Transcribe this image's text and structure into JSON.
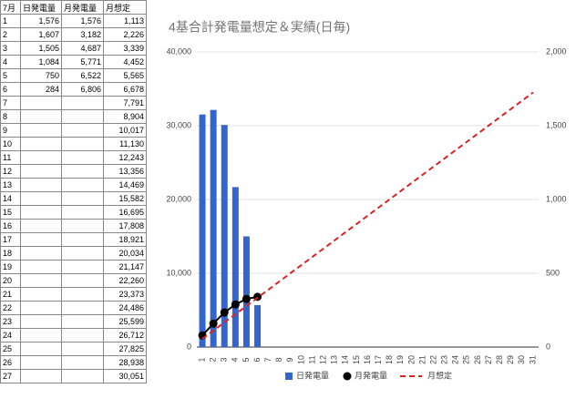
{
  "table": {
    "header": [
      "7月",
      "日発電量",
      "月発電量",
      "月想定"
    ],
    "rows": [
      [
        "1",
        "1,576",
        "1,576",
        "1,113"
      ],
      [
        "2",
        "1,607",
        "3,182",
        "2,226"
      ],
      [
        "3",
        "1,505",
        "4,687",
        "3,339"
      ],
      [
        "4",
        "1,084",
        "5,771",
        "4,452"
      ],
      [
        "5",
        "750",
        "6,522",
        "5,565"
      ],
      [
        "6",
        "284",
        "6,806",
        "6,678"
      ],
      [
        "7",
        null,
        null,
        "7,791"
      ],
      [
        "8",
        null,
        null,
        "8,904"
      ],
      [
        "9",
        null,
        null,
        "10,017"
      ],
      [
        "10",
        null,
        null,
        "11,130"
      ],
      [
        "11",
        null,
        null,
        "12,243"
      ],
      [
        "12",
        null,
        null,
        "13,356"
      ],
      [
        "13",
        null,
        null,
        "14,469"
      ],
      [
        "14",
        null,
        null,
        "15,582"
      ],
      [
        "15",
        null,
        null,
        "16,695"
      ],
      [
        "16",
        null,
        null,
        "17,808"
      ],
      [
        "17",
        null,
        null,
        "18,921"
      ],
      [
        "18",
        null,
        null,
        "20,034"
      ],
      [
        "19",
        null,
        null,
        "21,147"
      ],
      [
        "20",
        null,
        null,
        "22,260"
      ],
      [
        "21",
        null,
        null,
        "23,373"
      ],
      [
        "22",
        null,
        null,
        "24,486"
      ],
      [
        "23",
        null,
        null,
        "25,599"
      ],
      [
        "24",
        null,
        null,
        "26,712"
      ],
      [
        "25",
        null,
        null,
        "27,825"
      ],
      [
        "26",
        null,
        null,
        "28,938"
      ],
      [
        "27",
        null,
        null,
        "30,051"
      ]
    ]
  },
  "chart_data": {
    "type": "combo",
    "title": "4基合計発電量想定＆実績(日毎)",
    "categories": [
      "1",
      "2",
      "3",
      "4",
      "5",
      "6",
      "7",
      "8",
      "9",
      "10",
      "11",
      "12",
      "13",
      "14",
      "15",
      "16",
      "17",
      "18",
      "19",
      "20",
      "21",
      "22",
      "23",
      "24",
      "25",
      "26",
      "27",
      "28",
      "29",
      "30",
      "31"
    ],
    "series": [
      {
        "name": "日発電量",
        "type": "bar",
        "axis": "y2",
        "color": "#3366cc",
        "values": [
          1576,
          1607,
          1505,
          1084,
          750,
          284,
          null,
          null,
          null,
          null,
          null,
          null,
          null,
          null,
          null,
          null,
          null,
          null,
          null,
          null,
          null,
          null,
          null,
          null,
          null,
          null,
          null,
          null,
          null,
          null,
          null
        ]
      },
      {
        "name": "月発電量",
        "type": "line-points",
        "color": "#000000",
        "values": [
          1576,
          3182,
          4687,
          5771,
          6522,
          6806,
          null,
          null,
          null,
          null,
          null,
          null,
          null,
          null,
          null,
          null,
          null,
          null,
          null,
          null,
          null,
          null,
          null,
          null,
          null,
          null,
          null,
          null,
          null,
          null,
          null
        ]
      },
      {
        "name": "月想定",
        "type": "dashed-line",
        "color": "#dd2222",
        "values": [
          1113,
          2226,
          3339,
          4452,
          5565,
          6678,
          7791,
          8904,
          10017,
          11130,
          12243,
          13356,
          14469,
          15582,
          16695,
          17808,
          18921,
          20034,
          21147,
          22260,
          23373,
          24486,
          25599,
          26712,
          27825,
          28938,
          30051,
          31164,
          32277,
          33390,
          34503
        ]
      }
    ],
    "ylim": [
      0,
      40000
    ],
    "yticks": [
      0,
      {
        "value": 10000,
        "label": "10,000"
      },
      {
        "value": 20000,
        "label": "20,000"
      },
      {
        "value": 30000,
        "label": "30,000"
      },
      {
        "value": 40000,
        "label": "40,000"
      }
    ],
    "y2lim": [
      0,
      2000
    ],
    "y2ticks": [
      0,
      500,
      {
        "value": 1000,
        "label": "1,000"
      },
      {
        "value": 1500,
        "label": "1,500"
      },
      {
        "value": 2000,
        "label": "2,000"
      }
    ],
    "grid": true,
    "legend": "bottom"
  }
}
